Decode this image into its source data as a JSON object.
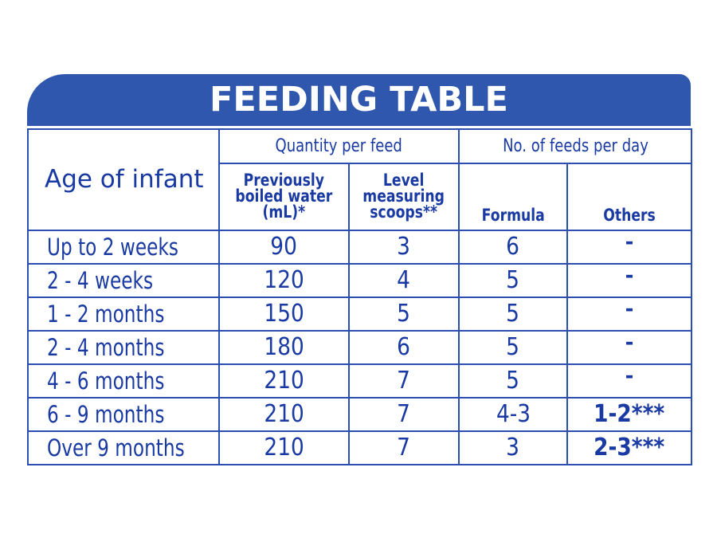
{
  "title": "FEEDING TABLE",
  "headers": {
    "age": "Age of infant",
    "quantity_group": "Quantity per feed",
    "feeds_group": "No. of feeds per day",
    "water": [
      "Previously",
      "boiled water",
      "(mL)*"
    ],
    "scoops": [
      "Level",
      "measuring",
      "scoops**"
    ],
    "formula": "Formula",
    "others": "Others"
  },
  "rows": [
    {
      "age": "Up to 2 weeks",
      "water": "90",
      "scoops": "3",
      "formula": "6",
      "others": "-"
    },
    {
      "age": "2 - 4 weeks",
      "water": "120",
      "scoops": "4",
      "formula": "5",
      "others": "-"
    },
    {
      "age": "1 - 2 months",
      "water": "150",
      "scoops": "5",
      "formula": "5",
      "others": "-"
    },
    {
      "age": "2 - 4 months",
      "water": "180",
      "scoops": "6",
      "formula": "5",
      "others": "-"
    },
    {
      "age": "4 - 6 months",
      "water": "210",
      "scoops": "7",
      "formula": "5",
      "others": "-"
    },
    {
      "age": "6 - 9 months",
      "water": "210",
      "scoops": "7",
      "formula": "4-3",
      "others": "1-2***"
    },
    {
      "age": "Over 9 months",
      "water": "210",
      "scoops": "7",
      "formula": "3",
      "others": "2-3***"
    }
  ],
  "colors": {
    "banner": "#2f57ad",
    "text": "#1a3aa3",
    "border": "#2a4fb0"
  }
}
